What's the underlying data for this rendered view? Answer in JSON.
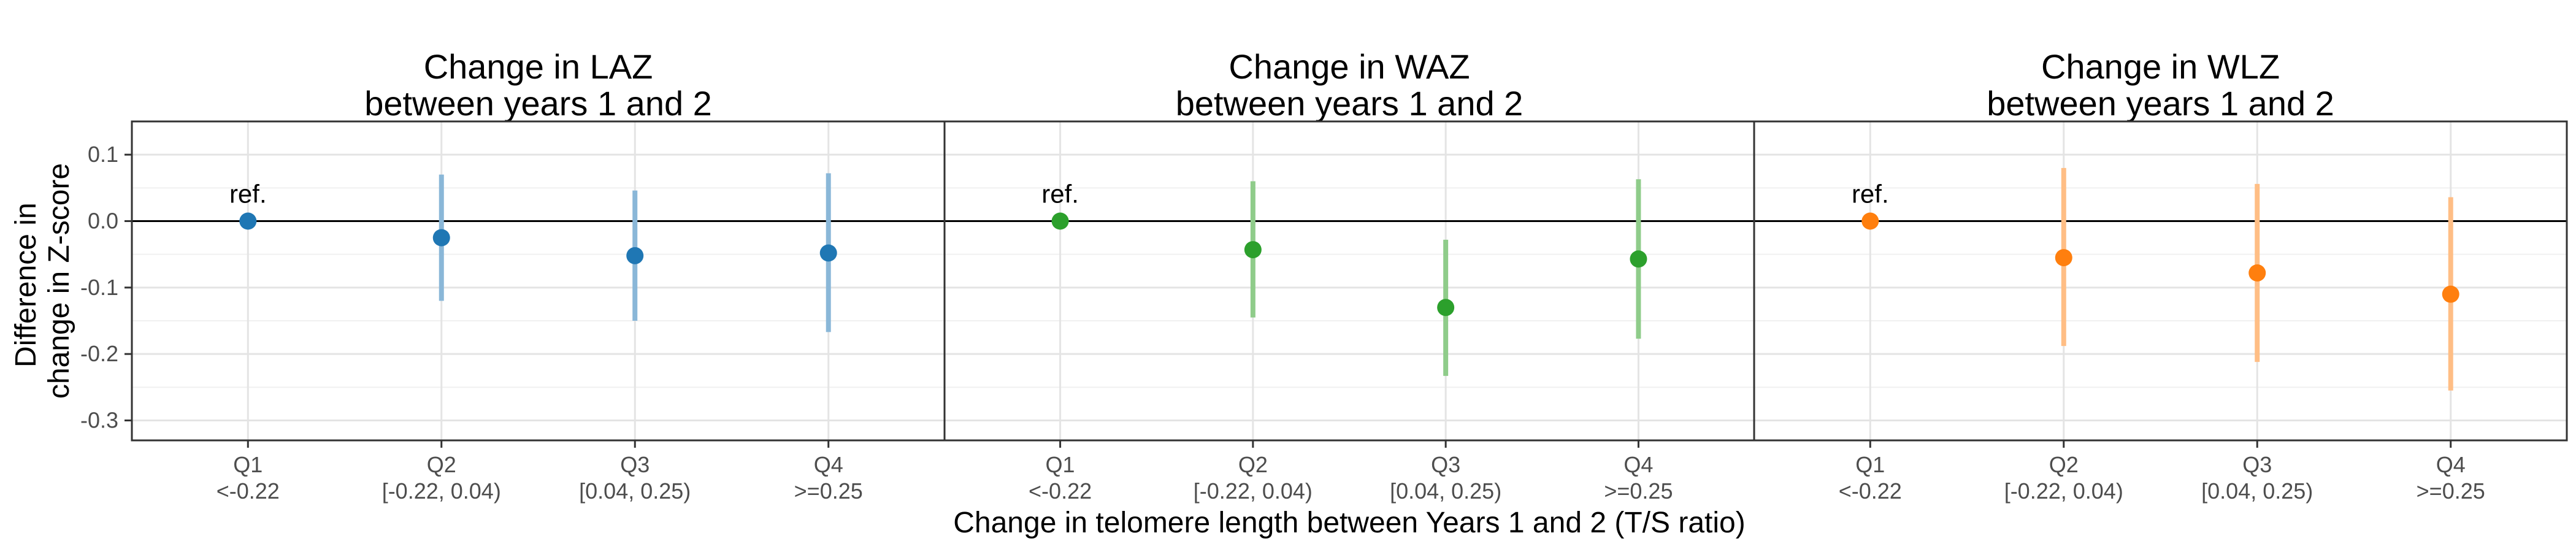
{
  "chart_data": {
    "type": "scatter",
    "xlabel": "Change in telomere length between Years 1 and 2 (T/S ratio)",
    "ylabel_lines": [
      "Difference in",
      "change in Z-score"
    ],
    "ylim": [
      -0.33,
      0.15
    ],
    "yticks": [
      "0.1",
      "0.0",
      "-0.1",
      "-0.2",
      "-0.3"
    ],
    "ytick_values": [
      0.1,
      0.0,
      -0.1,
      -0.2,
      -0.3
    ],
    "categories": [
      {
        "q": "Q1",
        "range": "<-0.22"
      },
      {
        "q": "Q2",
        "range": "[-0.22, 0.04)"
      },
      {
        "q": "Q3",
        "range": "[0.04, 0.25)"
      },
      {
        "q": "Q4",
        "range": ">=0.25"
      }
    ],
    "ref_label": "ref.",
    "grid": true,
    "panels": [
      {
        "title_line1": "Change in LAZ",
        "title_line2": "between years 1 and 2",
        "color": "#1f77b4",
        "ci_color": "#8ab7d8",
        "estimates": [
          0.0,
          -0.025,
          -0.052,
          -0.048
        ],
        "lower": [
          null,
          -0.12,
          -0.15,
          -0.167
        ],
        "upper": [
          null,
          0.07,
          0.046,
          0.072
        ]
      },
      {
        "title_line1": "Change in WAZ",
        "title_line2": "between years 1 and 2",
        "color": "#2ca02c",
        "ci_color": "#8fcc8a",
        "estimates": [
          0.0,
          -0.043,
          -0.13,
          -0.057
        ],
        "lower": [
          null,
          -0.145,
          -0.233,
          -0.177
        ],
        "upper": [
          null,
          0.06,
          -0.028,
          0.063
        ]
      },
      {
        "title_line1": "Change in WLZ",
        "title_line2": "between years 1 and 2",
        "color": "#ff7f0e",
        "ci_color": "#ffbe85",
        "estimates": [
          0.0,
          -0.055,
          -0.078,
          -0.11
        ],
        "lower": [
          null,
          -0.188,
          -0.212,
          -0.255
        ],
        "upper": [
          null,
          0.08,
          0.056,
          0.036
        ]
      }
    ]
  }
}
